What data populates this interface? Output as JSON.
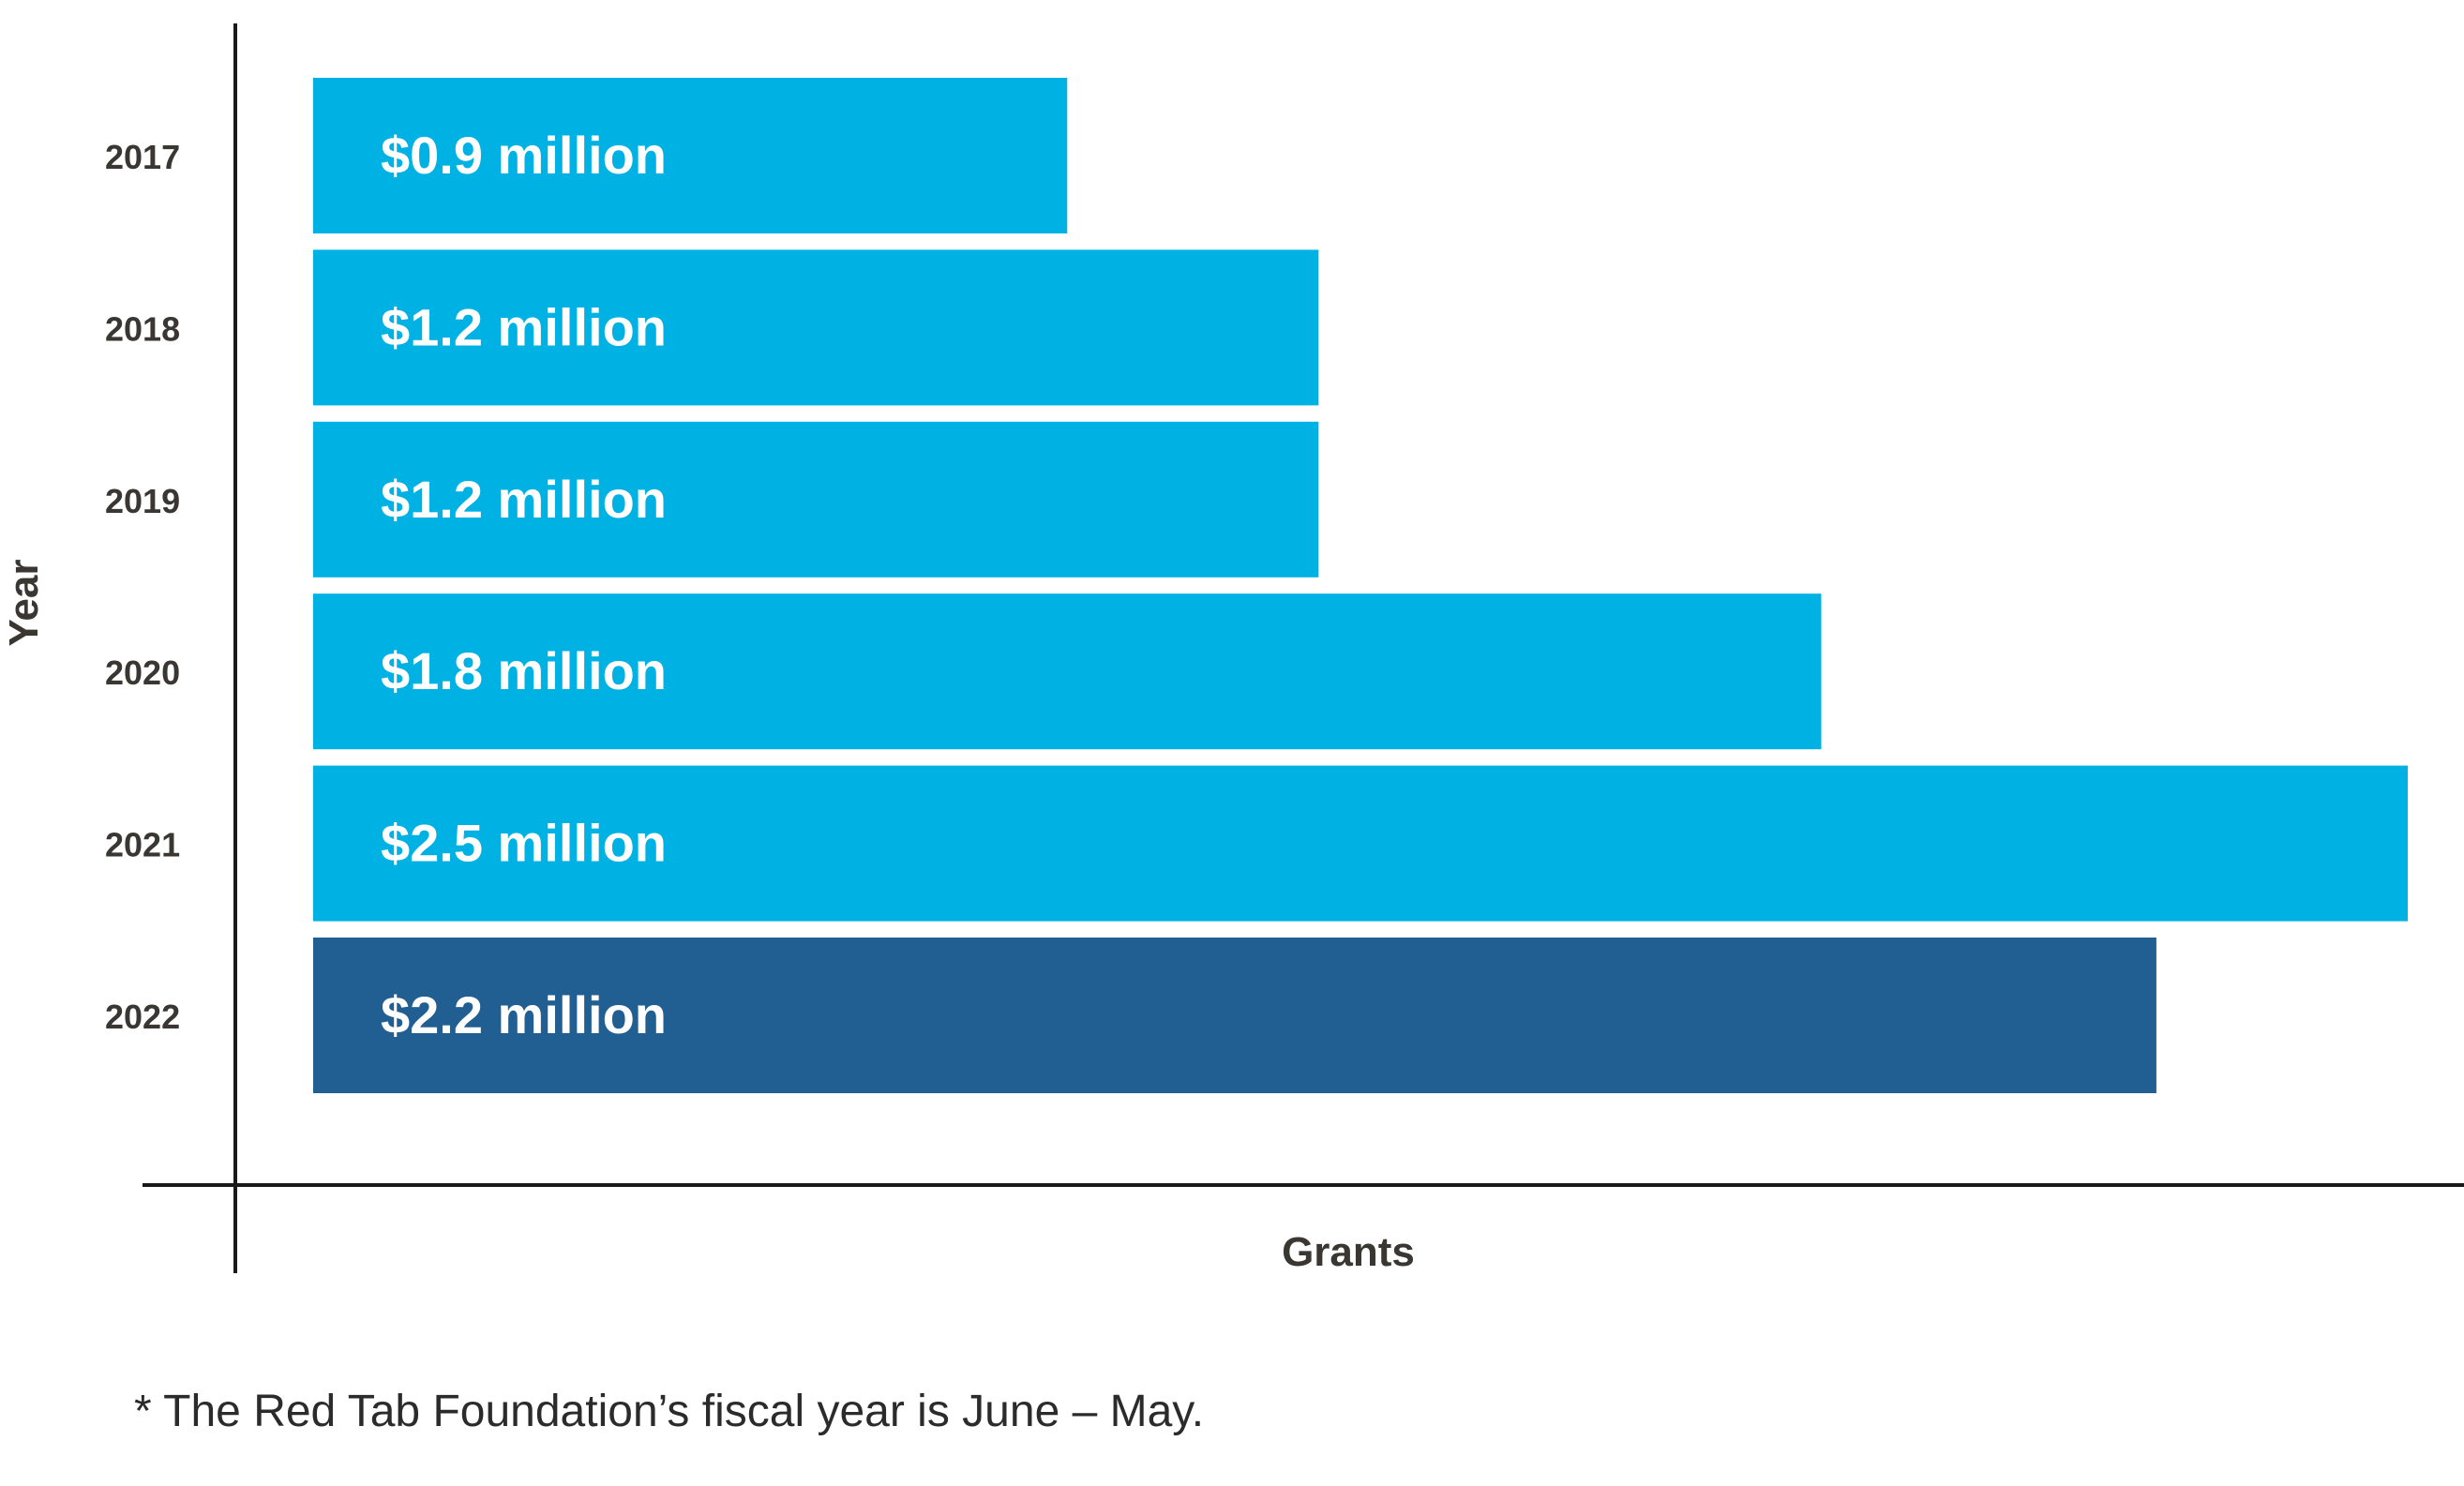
{
  "chart_data": {
    "type": "bar",
    "orientation": "horizontal",
    "categories": [
      "2017",
      "2018",
      "2019",
      "2020",
      "2021",
      "2022"
    ],
    "values": [
      0.9,
      1.2,
      1.2,
      1.8,
      2.5,
      2.2
    ],
    "data_labels": [
      "$0.9 million",
      "$1.2 million",
      "$1.2 million",
      "$1.8 million",
      "$2.5 million",
      "$2.2 million"
    ],
    "bar_colors": [
      "#00b2e3",
      "#00b2e3",
      "#00b2e3",
      "#00b2e3",
      "#00b2e3",
      "#215f92"
    ],
    "xlabel": "Grants",
    "ylabel": "Year",
    "xlim": [
      0,
      2.5
    ],
    "grid": false,
    "legend": "none"
  },
  "footnote": "* The Red Tab Foundation’s fiscal year is June – May.",
  "colors": {
    "axis": "#1a1a1a",
    "label_text": "#3a3632",
    "bar_label_text": "#ffffff"
  }
}
